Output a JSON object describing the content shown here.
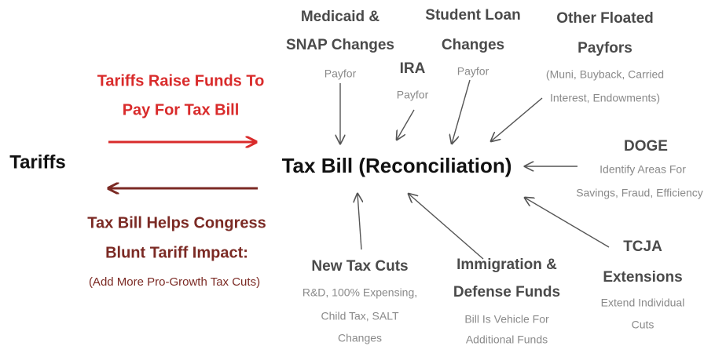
{
  "center": "Tax Bill (Reconciliation)",
  "left": "Tariffs",
  "flows": {
    "to_bill": [
      "Tariffs Raise Funds To",
      "Pay For Tax Bill"
    ],
    "from_bill": {
      "title": [
        "Tax Bill Helps Congress",
        "Blunt Tariff Impact:"
      ],
      "note": "(Add More Pro-Growth Tax Cuts)"
    }
  },
  "nodes": [
    {
      "title": [
        "Medicaid &",
        "SNAP Changes"
      ],
      "detail": [
        "Payfor"
      ]
    },
    {
      "title": [
        "IRA"
      ],
      "detail": [
        "Payfor"
      ]
    },
    {
      "title": [
        "Student Loan",
        "Changes"
      ],
      "detail": [
        "Payfor"
      ]
    },
    {
      "title": [
        "Other Floated",
        "Payfors"
      ],
      "detail": [
        "(Muni, Buyback, Carried",
        "Interest, Endowments)"
      ]
    },
    {
      "title": [
        "DOGE"
      ],
      "detail": [
        "Identify Areas For",
        "Savings, Fraud, Efficiency"
      ]
    },
    {
      "title": [
        "TCJA",
        "Extensions"
      ],
      "detail": [
        "Extend Individual",
        "Cuts"
      ]
    },
    {
      "title": [
        "Immigration &",
        "Defense Funds"
      ],
      "detail": [
        "Bill Is Vehicle For",
        "Additional Funds"
      ]
    },
    {
      "title": [
        "New Tax Cuts"
      ],
      "detail": [
        "R&D, 100% Expensing,",
        "Child Tax, SALT",
        "Changes"
      ]
    }
  ]
}
